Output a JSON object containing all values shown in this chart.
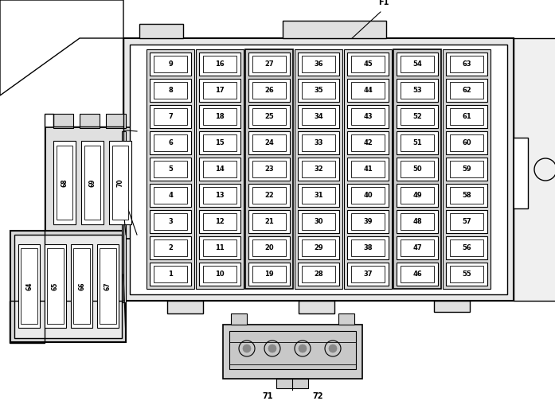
{
  "bg_color": "#ffffff",
  "line_color": "#000000",
  "fuses": {
    "col1": [
      9,
      8,
      7,
      6,
      5,
      4,
      3,
      2,
      1
    ],
    "col2": [
      16,
      17,
      18,
      15,
      14,
      13,
      12,
      11,
      10
    ],
    "col3": [
      27,
      26,
      25,
      24,
      23,
      22,
      21,
      20,
      19
    ],
    "col4": [
      36,
      35,
      34,
      33,
      32,
      31,
      30,
      29,
      28
    ],
    "col5": [
      45,
      44,
      43,
      42,
      41,
      40,
      39,
      38,
      37
    ],
    "col6": [
      54,
      53,
      52,
      51,
      50,
      49,
      48,
      47,
      46
    ],
    "col7": [
      63,
      62,
      61,
      60,
      59,
      58,
      57,
      56,
      55
    ]
  },
  "relay_top_labels": [
    "68",
    "69",
    "70"
  ],
  "relay_bot_labels": [
    "64",
    "65",
    "66",
    "67"
  ],
  "connector_labels": [
    "71",
    "72"
  ],
  "f1_label": "F1",
  "box_color": "#f0f0f0",
  "fuse_color": "#ffffff",
  "strip_color": "#e0e0e0"
}
